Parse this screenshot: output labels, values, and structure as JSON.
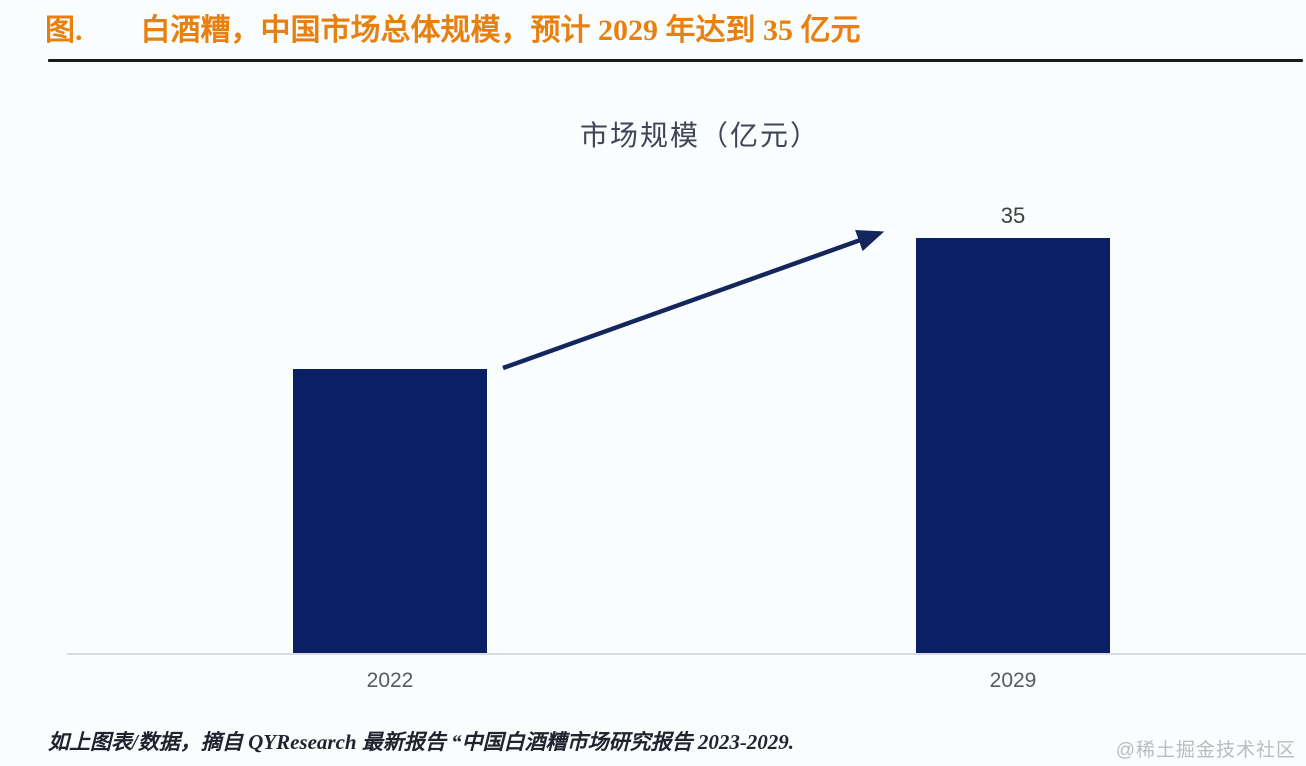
{
  "page": {
    "background_color": "#fafdfe"
  },
  "header": {
    "prefix": "图.",
    "title": "白酒糟，中国市场总体规模，预计 2029 年达到 35 亿元",
    "text_color": "#e8800f",
    "rule_color": "#1b1b1b"
  },
  "chart_data": {
    "type": "bar",
    "title": "市场规模（亿元）",
    "categories": [
      "2022",
      "2029"
    ],
    "values": [
      24,
      35
    ],
    "value_labels": [
      "",
      "35"
    ],
    "ylim": [
      0,
      35
    ],
    "grid": false,
    "legend": "none",
    "bar_color": "#0b2064",
    "annotation": {
      "type": "growth-arrow",
      "from": "2022",
      "to": "2029",
      "color": "#15265c"
    },
    "axis_line_color": "#d9dbdf",
    "title_color": "#3e4557",
    "value_label_color": "#3f3f3f",
    "tick_color": "#555b63"
  },
  "footer": {
    "source": "如上图表/数据，摘自 QYResearch 最新报告 “中国白酒糟市场研究报告 2023-2029.",
    "source_color": "#20242e",
    "watermark": "@稀土掘金技术社区",
    "watermark_color": "#b9bcc1"
  }
}
